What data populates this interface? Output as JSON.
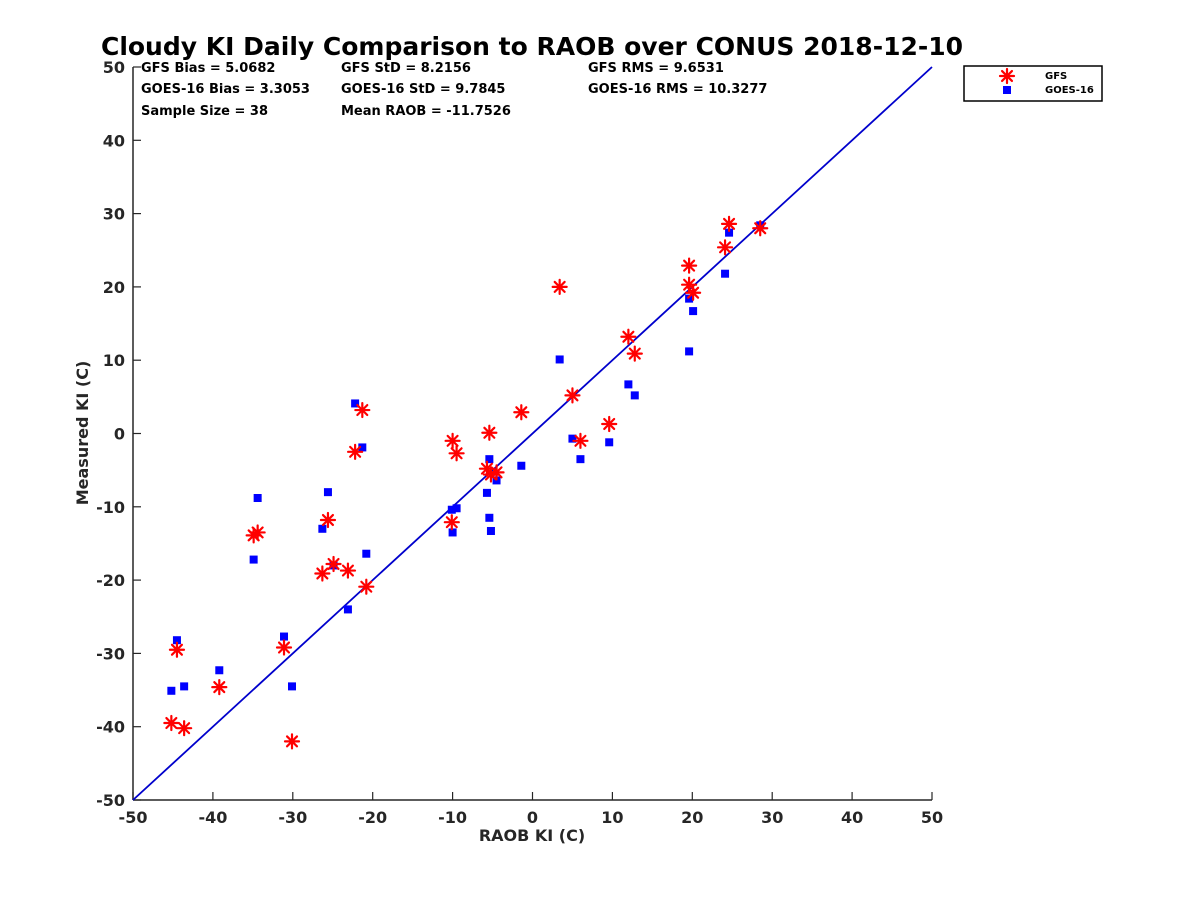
{
  "chart_data": {
    "type": "scatter",
    "title": "Cloudy KI Daily Comparison to RAOB over CONUS 2018-12-10",
    "xlabel": "RAOB KI (C)",
    "ylabel": "Measured KI (C)",
    "xlim": [
      -50,
      50
    ],
    "ylim": [
      -50,
      50
    ],
    "xticks": [
      "-50",
      "-40",
      "-30",
      "-20",
      "-10",
      "0",
      "10",
      "20",
      "30",
      "40",
      "50"
    ],
    "yticks": [
      "-50",
      "-40",
      "-30",
      "-20",
      "-10",
      "0",
      "10",
      "20",
      "30",
      "40",
      "50"
    ],
    "grid": false,
    "legend_position": "outside-top-right",
    "reference_line": {
      "from": [
        -50,
        -50
      ],
      "to": [
        50,
        50
      ],
      "color": "#0000cc"
    },
    "stats": [
      "GFS Bias = 5.0682",
      "GFS StD = 8.2156",
      "GFS RMS = 9.6531",
      "GOES-16 Bias = 3.3053",
      "GOES-16 StD = 9.7845",
      "GOES-16 RMS = 10.3277",
      "Sample Size = 38",
      "Mean RAOB = -11.7526"
    ],
    "series": [
      {
        "name": "GFS",
        "marker": "asterisk",
        "color": "#ff0000",
        "points": [
          [
            -45.2,
            -39.5
          ],
          [
            -43.6,
            -40.2
          ],
          [
            -44.5,
            -29.5
          ],
          [
            -39.2,
            -34.6
          ],
          [
            -34.9,
            -13.9
          ],
          [
            -34.4,
            -13.5
          ],
          [
            -31.1,
            -29.2
          ],
          [
            -30.1,
            -42.0
          ],
          [
            -26.3,
            -19.1
          ],
          [
            -25.6,
            -11.8
          ],
          [
            -24.9,
            -17.8
          ],
          [
            -23.1,
            -18.7
          ],
          [
            -22.2,
            -2.5
          ],
          [
            -21.3,
            3.2
          ],
          [
            -20.8,
            -20.9
          ],
          [
            -10.0,
            -1.0
          ],
          [
            -10.1,
            -12.1
          ],
          [
            -9.5,
            -2.7
          ],
          [
            -5.7,
            -4.8
          ],
          [
            -5.4,
            0.1
          ],
          [
            -5.2,
            -5.6
          ],
          [
            -4.5,
            -5.3
          ],
          [
            -1.4,
            2.9
          ],
          [
            3.4,
            20.0
          ],
          [
            5.0,
            5.2
          ],
          [
            6.0,
            -1.0
          ],
          [
            9.6,
            1.3
          ],
          [
            12.0,
            13.2
          ],
          [
            12.8,
            10.9
          ],
          [
            19.6,
            22.9
          ],
          [
            19.6,
            20.3
          ],
          [
            20.1,
            19.2
          ],
          [
            24.1,
            25.4
          ],
          [
            24.6,
            28.6
          ],
          [
            28.5,
            28.0
          ]
        ]
      },
      {
        "name": "GOES-16",
        "marker": "square",
        "color": "#0000ff",
        "points": [
          [
            -45.2,
            -35.1
          ],
          [
            -44.5,
            -28.2
          ],
          [
            -43.6,
            -34.5
          ],
          [
            -39.2,
            -32.3
          ],
          [
            -34.9,
            -17.2
          ],
          [
            -34.4,
            -8.8
          ],
          [
            -31.1,
            -27.7
          ],
          [
            -30.1,
            -34.5
          ],
          [
            -26.3,
            -13.0
          ],
          [
            -25.6,
            -8.0
          ],
          [
            -24.9,
            -18.0
          ],
          [
            -23.1,
            -24.0
          ],
          [
            -22.2,
            4.1
          ],
          [
            -21.3,
            -1.9
          ],
          [
            -20.8,
            -16.4
          ],
          [
            -10.1,
            -10.4
          ],
          [
            -10.0,
            -13.5
          ],
          [
            -9.5,
            -10.2
          ],
          [
            -5.7,
            -8.1
          ],
          [
            -5.4,
            -3.5
          ],
          [
            -5.4,
            -11.5
          ],
          [
            -5.2,
            -13.3
          ],
          [
            -4.5,
            -6.4
          ],
          [
            -1.4,
            -4.4
          ],
          [
            3.4,
            10.1
          ],
          [
            5.0,
            -0.7
          ],
          [
            6.0,
            -3.5
          ],
          [
            9.6,
            -1.2
          ],
          [
            12.0,
            6.7
          ],
          [
            12.8,
            5.2
          ],
          [
            19.6,
            11.2
          ],
          [
            19.6,
            18.4
          ],
          [
            20.1,
            16.7
          ],
          [
            24.1,
            21.8
          ],
          [
            24.6,
            27.4
          ],
          [
            28.5,
            28.4
          ]
        ]
      }
    ]
  }
}
